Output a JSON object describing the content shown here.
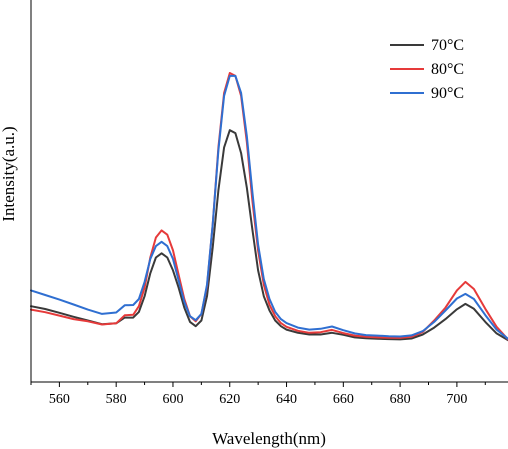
{
  "chart_data": {
    "type": "line",
    "xlabel": "Wavelength(nm)",
    "ylabel": "Intensity(a.u.)",
    "xlim": [
      550,
      718
    ],
    "ylim": [
      0,
      100
    ],
    "xticks": [
      560,
      580,
      600,
      620,
      640,
      660,
      680,
      700
    ],
    "y_tick_labels_shown": false,
    "legend_position": "top-right",
    "series": [
      {
        "name": "70°C",
        "color": "#3a3a3a",
        "points": [
          [
            550,
            26.5
          ],
          [
            555,
            25.5
          ],
          [
            560,
            24.2
          ],
          [
            565,
            22.8
          ],
          [
            570,
            21.5
          ],
          [
            575,
            20.2
          ],
          [
            580,
            20.5
          ],
          [
            583,
            22.5
          ],
          [
            586,
            22.5
          ],
          [
            588,
            24.5
          ],
          [
            590,
            30
          ],
          [
            592,
            38
          ],
          [
            594,
            43.5
          ],
          [
            596,
            45
          ],
          [
            598,
            43.5
          ],
          [
            600,
            39
          ],
          [
            602,
            33
          ],
          [
            604,
            26
          ],
          [
            606,
            21
          ],
          [
            608,
            19.5
          ],
          [
            610,
            21.5
          ],
          [
            612,
            30
          ],
          [
            614,
            47
          ],
          [
            616,
            67
          ],
          [
            618,
            82
          ],
          [
            620,
            88
          ],
          [
            622,
            87
          ],
          [
            624,
            80
          ],
          [
            626,
            68
          ],
          [
            628,
            53
          ],
          [
            630,
            39
          ],
          [
            632,
            30
          ],
          [
            634,
            25
          ],
          [
            636,
            21.5
          ],
          [
            638,
            19.5
          ],
          [
            640,
            18.3
          ],
          [
            644,
            17.2
          ],
          [
            648,
            16.6
          ],
          [
            652,
            16.6
          ],
          [
            656,
            17.2
          ],
          [
            660,
            16.5
          ],
          [
            664,
            15.6
          ],
          [
            668,
            15.3
          ],
          [
            672,
            15.1
          ],
          [
            676,
            15
          ],
          [
            680,
            14.9
          ],
          [
            684,
            15.2
          ],
          [
            688,
            16.6
          ],
          [
            692,
            19
          ],
          [
            696,
            22
          ],
          [
            700,
            25.4
          ],
          [
            703,
            27.3
          ],
          [
            706,
            25.6
          ],
          [
            710,
            21
          ],
          [
            714,
            17
          ],
          [
            718,
            14.6
          ]
        ]
      },
      {
        "name": "80°C",
        "color": "#e63a3a",
        "points": [
          [
            550,
            25.3
          ],
          [
            555,
            24.4
          ],
          [
            560,
            23.2
          ],
          [
            565,
            22
          ],
          [
            570,
            21.2
          ],
          [
            575,
            20.1
          ],
          [
            580,
            20.5
          ],
          [
            583,
            23.3
          ],
          [
            586,
            23.5
          ],
          [
            588,
            26.5
          ],
          [
            590,
            33
          ],
          [
            592,
            43.5
          ],
          [
            594,
            50.5
          ],
          [
            596,
            53
          ],
          [
            598,
            51.5
          ],
          [
            600,
            46
          ],
          [
            602,
            37.5
          ],
          [
            604,
            29
          ],
          [
            606,
            23
          ],
          [
            608,
            21.2
          ],
          [
            610,
            23.8
          ],
          [
            612,
            33.5
          ],
          [
            614,
            55
          ],
          [
            616,
            82
          ],
          [
            618,
            101
          ],
          [
            620,
            108
          ],
          [
            622,
            107
          ],
          [
            624,
            100
          ],
          [
            626,
            84
          ],
          [
            628,
            63
          ],
          [
            630,
            46
          ],
          [
            632,
            34
          ],
          [
            634,
            27
          ],
          [
            636,
            23
          ],
          [
            638,
            20.6
          ],
          [
            640,
            19.3
          ],
          [
            644,
            17.9
          ],
          [
            648,
            17.2
          ],
          [
            652,
            17.4
          ],
          [
            656,
            18.2
          ],
          [
            660,
            17.1
          ],
          [
            664,
            16.2
          ],
          [
            668,
            15.8
          ],
          [
            672,
            15.6
          ],
          [
            676,
            15.5
          ],
          [
            680,
            15.4
          ],
          [
            684,
            15.8
          ],
          [
            688,
            17.5
          ],
          [
            692,
            21.5
          ],
          [
            696,
            26
          ],
          [
            700,
            32
          ],
          [
            703,
            35
          ],
          [
            706,
            32.5
          ],
          [
            710,
            25.6
          ],
          [
            714,
            19.3
          ],
          [
            718,
            14.9
          ]
        ]
      },
      {
        "name": "90°C",
        "color": "#2f6fd1",
        "points": [
          [
            550,
            32
          ],
          [
            555,
            30.4
          ],
          [
            560,
            28.8
          ],
          [
            565,
            27.1
          ],
          [
            570,
            25.3
          ],
          [
            575,
            23.8
          ],
          [
            580,
            24.3
          ],
          [
            583,
            26.8
          ],
          [
            586,
            26.9
          ],
          [
            588,
            29
          ],
          [
            590,
            35
          ],
          [
            592,
            43
          ],
          [
            594,
            47.5
          ],
          [
            596,
            49
          ],
          [
            598,
            47.5
          ],
          [
            600,
            43
          ],
          [
            602,
            35.5
          ],
          [
            604,
            28
          ],
          [
            606,
            23
          ],
          [
            608,
            21.6
          ],
          [
            610,
            23.8
          ],
          [
            612,
            34
          ],
          [
            614,
            55
          ],
          [
            616,
            81
          ],
          [
            618,
            100
          ],
          [
            620,
            107
          ],
          [
            622,
            107
          ],
          [
            624,
            101
          ],
          [
            626,
            86
          ],
          [
            628,
            66
          ],
          [
            630,
            48
          ],
          [
            632,
            36
          ],
          [
            634,
            29
          ],
          [
            636,
            24.5
          ],
          [
            638,
            22
          ],
          [
            640,
            20.6
          ],
          [
            644,
            19
          ],
          [
            648,
            18.3
          ],
          [
            652,
            18.6
          ],
          [
            656,
            19.4
          ],
          [
            660,
            18.1
          ],
          [
            664,
            17
          ],
          [
            668,
            16.4
          ],
          [
            672,
            16.2
          ],
          [
            676,
            16
          ],
          [
            680,
            15.9
          ],
          [
            684,
            16.3
          ],
          [
            688,
            17.8
          ],
          [
            692,
            21
          ],
          [
            696,
            25
          ],
          [
            700,
            29.2
          ],
          [
            703,
            30.8
          ],
          [
            706,
            29
          ],
          [
            710,
            23.4
          ],
          [
            714,
            18.3
          ],
          [
            718,
            15.1
          ]
        ]
      }
    ]
  }
}
